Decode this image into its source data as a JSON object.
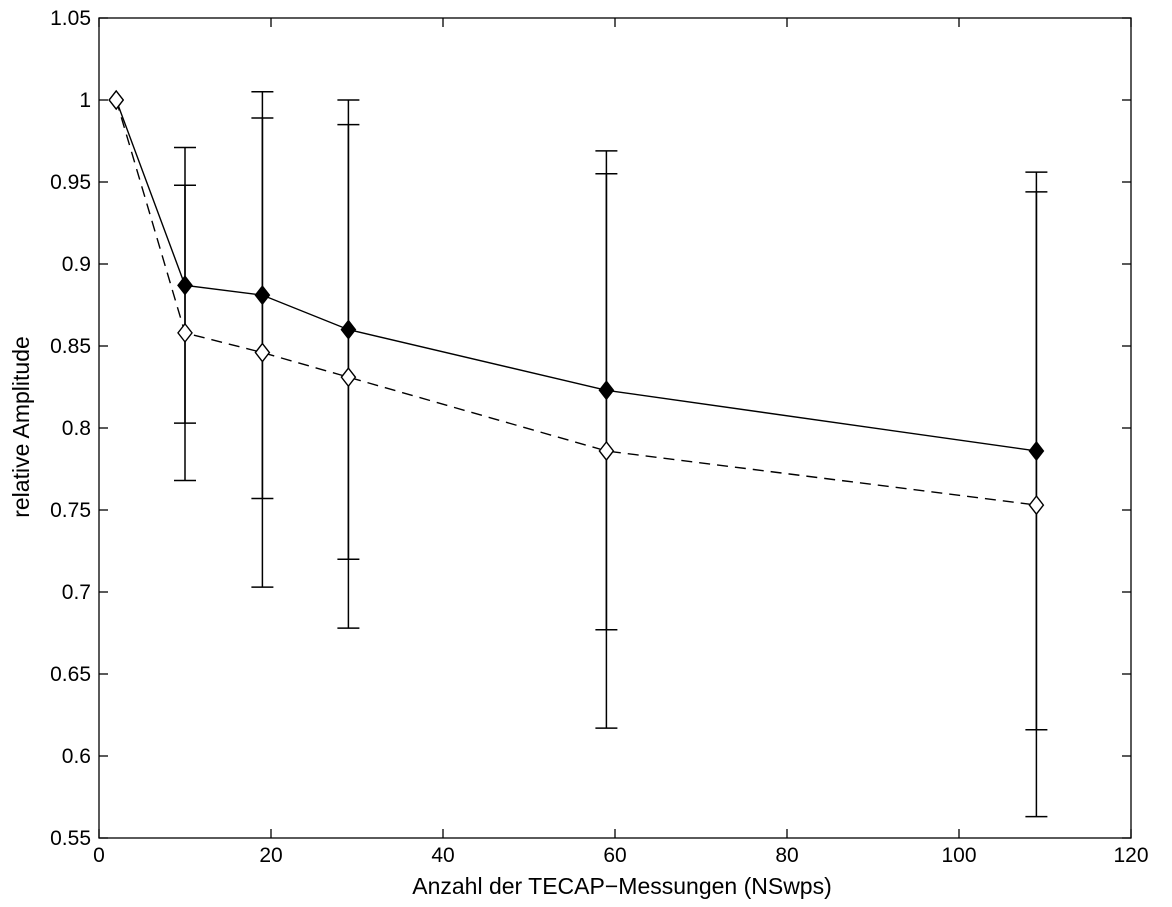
{
  "chart_data": {
    "type": "line",
    "title": "",
    "xlabel": "Anzahl der TECAP−Messungen (NSwps)",
    "ylabel": "relative Amplitude",
    "xlim": [
      0,
      120
    ],
    "ylim": [
      0.55,
      1.05
    ],
    "xticks": [
      0,
      20,
      40,
      60,
      80,
      100,
      120
    ],
    "xtick_labels": [
      "0",
      "20",
      "40",
      "60",
      "80",
      "100",
      "120"
    ],
    "yticks": [
      0.55,
      0.6,
      0.65,
      0.7,
      0.75,
      0.8,
      0.85,
      0.9,
      0.95,
      1.0,
      1.05
    ],
    "ytick_labels": [
      "0.55",
      "0.6",
      "0.65",
      "0.7",
      "0.75",
      "0.8",
      "0.85",
      "0.9",
      "0.95",
      "1",
      "1.05"
    ],
    "grid": false,
    "x": [
      2,
      10,
      19,
      29,
      59,
      109
    ],
    "series": [
      {
        "style": "solid",
        "marker": "filled-diamond",
        "color": "#000000",
        "values": [
          1.0,
          0.887,
          0.881,
          0.86,
          0.823,
          0.786
        ],
        "error_low": [
          1.0,
          0.803,
          0.757,
          0.72,
          0.677,
          0.616
        ],
        "error_high": [
          1.0,
          0.971,
          1.005,
          1.0,
          0.969,
          0.956
        ]
      },
      {
        "style": "dashed",
        "marker": "open-diamond",
        "color": "#000000",
        "values": [
          1.0,
          0.858,
          0.846,
          0.831,
          0.786,
          0.753
        ],
        "error_low": [
          1.0,
          0.768,
          0.703,
          0.678,
          0.617,
          0.563
        ],
        "error_high": [
          1.0,
          0.948,
          0.989,
          0.985,
          0.955,
          0.944
        ]
      }
    ]
  }
}
